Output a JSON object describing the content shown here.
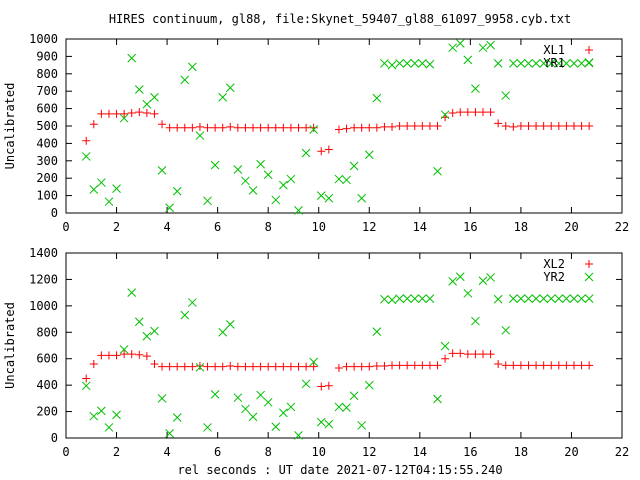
{
  "chart_data": [
    {
      "type": "scatter",
      "title": "HIRES continuum, gl88, file:Skynet_59407_gl88_61097_9958.cyb.txt",
      "xlabel": "",
      "ylabel": "Uncalibrated",
      "xlim": [
        0,
        22
      ],
      "ylim": [
        0,
        1000
      ],
      "xticks": [
        0,
        2,
        4,
        6,
        8,
        10,
        12,
        14,
        16,
        18,
        20,
        22
      ],
      "yticks": [
        0,
        100,
        200,
        300,
        400,
        500,
        600,
        700,
        800,
        900,
        1000
      ],
      "grid": false,
      "legend_position": "top-right",
      "series": [
        {
          "name": "XL1",
          "marker": "plus",
          "color": "#ff0000",
          "x": [
            0.8,
            1.1,
            1.4,
            1.7,
            2.0,
            2.3,
            2.6,
            2.9,
            3.2,
            3.5,
            3.8,
            4.1,
            4.4,
            4.7,
            5.0,
            5.3,
            5.6,
            5.9,
            6.2,
            6.5,
            6.8,
            7.1,
            7.4,
            7.7,
            8.0,
            8.3,
            8.6,
            8.9,
            9.2,
            9.5,
            9.8,
            10.1,
            10.4,
            10.8,
            11.1,
            11.4,
            11.7,
            12.0,
            12.3,
            12.6,
            12.9,
            13.2,
            13.5,
            13.8,
            14.1,
            14.4,
            14.7,
            15.0,
            15.3,
            15.6,
            15.9,
            16.2,
            16.5,
            16.8,
            17.1,
            17.4,
            17.7,
            18.0,
            18.3,
            18.6,
            18.9,
            19.2,
            19.5,
            19.8,
            20.1,
            20.4,
            20.7
          ],
          "y": [
            415,
            510,
            570,
            570,
            570,
            570,
            575,
            580,
            575,
            570,
            510,
            490,
            490,
            490,
            490,
            495,
            490,
            490,
            490,
            495,
            490,
            490,
            490,
            490,
            490,
            490,
            490,
            490,
            490,
            490,
            490,
            355,
            365,
            480,
            485,
            490,
            490,
            490,
            490,
            495,
            495,
            500,
            500,
            500,
            500,
            500,
            500,
            550,
            575,
            580,
            580,
            580,
            580,
            580,
            515,
            500,
            495,
            500,
            500,
            500,
            500,
            500,
            500,
            500,
            500,
            500,
            500
          ]
        },
        {
          "name": "YR1",
          "marker": "cross",
          "color": "#00c000",
          "x": [
            0.8,
            1.1,
            1.4,
            1.7,
            2.0,
            2.3,
            2.6,
            2.9,
            3.2,
            3.5,
            3.8,
            4.1,
            4.4,
            4.7,
            5.0,
            5.3,
            5.6,
            5.9,
            6.2,
            6.5,
            6.8,
            7.1,
            7.4,
            7.7,
            8.0,
            8.3,
            8.6,
            8.9,
            9.2,
            9.5,
            9.8,
            10.1,
            10.4,
            10.8,
            11.1,
            11.4,
            11.7,
            12.0,
            12.3,
            12.6,
            12.9,
            13.2,
            13.5,
            13.8,
            14.1,
            14.4,
            14.7,
            15.0,
            15.3,
            15.6,
            15.9,
            16.2,
            16.5,
            16.8,
            17.1,
            17.4,
            17.7,
            18.0,
            18.3,
            18.6,
            18.9,
            19.2,
            19.5,
            19.8,
            20.1,
            20.4,
            20.7
          ],
          "y": [
            325,
            135,
            175,
            65,
            140,
            545,
            890,
            710,
            625,
            665,
            245,
            30,
            125,
            765,
            840,
            445,
            70,
            275,
            665,
            720,
            250,
            185,
            130,
            280,
            220,
            75,
            160,
            195,
            15,
            345,
            480,
            100,
            85,
            195,
            190,
            270,
            85,
            335,
            660,
            860,
            850,
            860,
            860,
            860,
            860,
            855,
            240,
            565,
            950,
            975,
            880,
            715,
            950,
            965,
            860,
            675,
            860,
            860,
            860,
            860,
            860,
            860,
            860,
            860,
            860,
            860,
            865
          ]
        }
      ]
    },
    {
      "type": "scatter",
      "title": "",
      "xlabel": "rel seconds : UT date 2021-07-12T04:15:55.240",
      "ylabel": "Uncalibrated",
      "xlim": [
        0,
        22
      ],
      "ylim": [
        0,
        1400
      ],
      "xticks": [
        0,
        2,
        4,
        6,
        8,
        10,
        12,
        14,
        16,
        18,
        20,
        22
      ],
      "yticks": [
        0,
        200,
        400,
        600,
        800,
        1000,
        1200,
        1400
      ],
      "grid": false,
      "legend_position": "top-right",
      "series": [
        {
          "name": "XL2",
          "marker": "plus",
          "color": "#ff0000",
          "x": [
            0.8,
            1.1,
            1.4,
            1.7,
            2.0,
            2.3,
            2.6,
            2.9,
            3.2,
            3.5,
            3.8,
            4.1,
            4.4,
            4.7,
            5.0,
            5.3,
            5.6,
            5.9,
            6.2,
            6.5,
            6.8,
            7.1,
            7.4,
            7.7,
            8.0,
            8.3,
            8.6,
            8.9,
            9.2,
            9.5,
            9.8,
            10.1,
            10.4,
            10.8,
            11.1,
            11.4,
            11.7,
            12.0,
            12.3,
            12.6,
            12.9,
            13.2,
            13.5,
            13.8,
            14.1,
            14.4,
            14.7,
            15.0,
            15.3,
            15.6,
            15.9,
            16.2,
            16.5,
            16.8,
            17.1,
            17.4,
            17.7,
            18.0,
            18.3,
            18.6,
            18.9,
            19.2,
            19.5,
            19.8,
            20.1,
            20.4,
            20.7
          ],
          "y": [
            450,
            560,
            625,
            625,
            625,
            635,
            635,
            630,
            620,
            560,
            540,
            540,
            540,
            540,
            540,
            545,
            540,
            540,
            540,
            545,
            540,
            540,
            540,
            540,
            540,
            540,
            540,
            540,
            540,
            540,
            540,
            390,
            395,
            530,
            540,
            540,
            540,
            540,
            545,
            545,
            550,
            550,
            550,
            550,
            550,
            550,
            550,
            600,
            640,
            640,
            635,
            635,
            635,
            635,
            560,
            550,
            550,
            550,
            550,
            550,
            550,
            550,
            550,
            550,
            550,
            550,
            550
          ]
        },
        {
          "name": "YR2",
          "marker": "cross",
          "color": "#00c000",
          "x": [
            0.8,
            1.1,
            1.4,
            1.7,
            2.0,
            2.3,
            2.6,
            2.9,
            3.2,
            3.5,
            3.8,
            4.1,
            4.4,
            4.7,
            5.0,
            5.3,
            5.6,
            5.9,
            6.2,
            6.5,
            6.8,
            7.1,
            7.4,
            7.7,
            8.0,
            8.3,
            8.6,
            8.9,
            9.2,
            9.5,
            9.8,
            10.1,
            10.4,
            10.8,
            11.1,
            11.4,
            11.7,
            12.0,
            12.3,
            12.6,
            12.9,
            13.2,
            13.5,
            13.8,
            14.1,
            14.4,
            14.7,
            15.0,
            15.3,
            15.6,
            15.9,
            16.2,
            16.5,
            16.8,
            17.1,
            17.4,
            17.7,
            18.0,
            18.3,
            18.6,
            18.9,
            19.2,
            19.5,
            19.8,
            20.1,
            20.4,
            20.7
          ],
          "y": [
            395,
            165,
            205,
            80,
            175,
            670,
            1100,
            880,
            770,
            810,
            300,
            35,
            155,
            930,
            1025,
            535,
            80,
            330,
            800,
            860,
            305,
            220,
            160,
            325,
            270,
            85,
            190,
            235,
            20,
            410,
            575,
            120,
            105,
            235,
            230,
            320,
            95,
            400,
            805,
            1050,
            1045,
            1055,
            1055,
            1055,
            1055,
            1055,
            295,
            695,
            1185,
            1220,
            1095,
            885,
            1190,
            1215,
            1050,
            815,
            1055,
            1055,
            1055,
            1055,
            1055,
            1055,
            1055,
            1055,
            1055,
            1055,
            1055
          ]
        }
      ]
    }
  ]
}
